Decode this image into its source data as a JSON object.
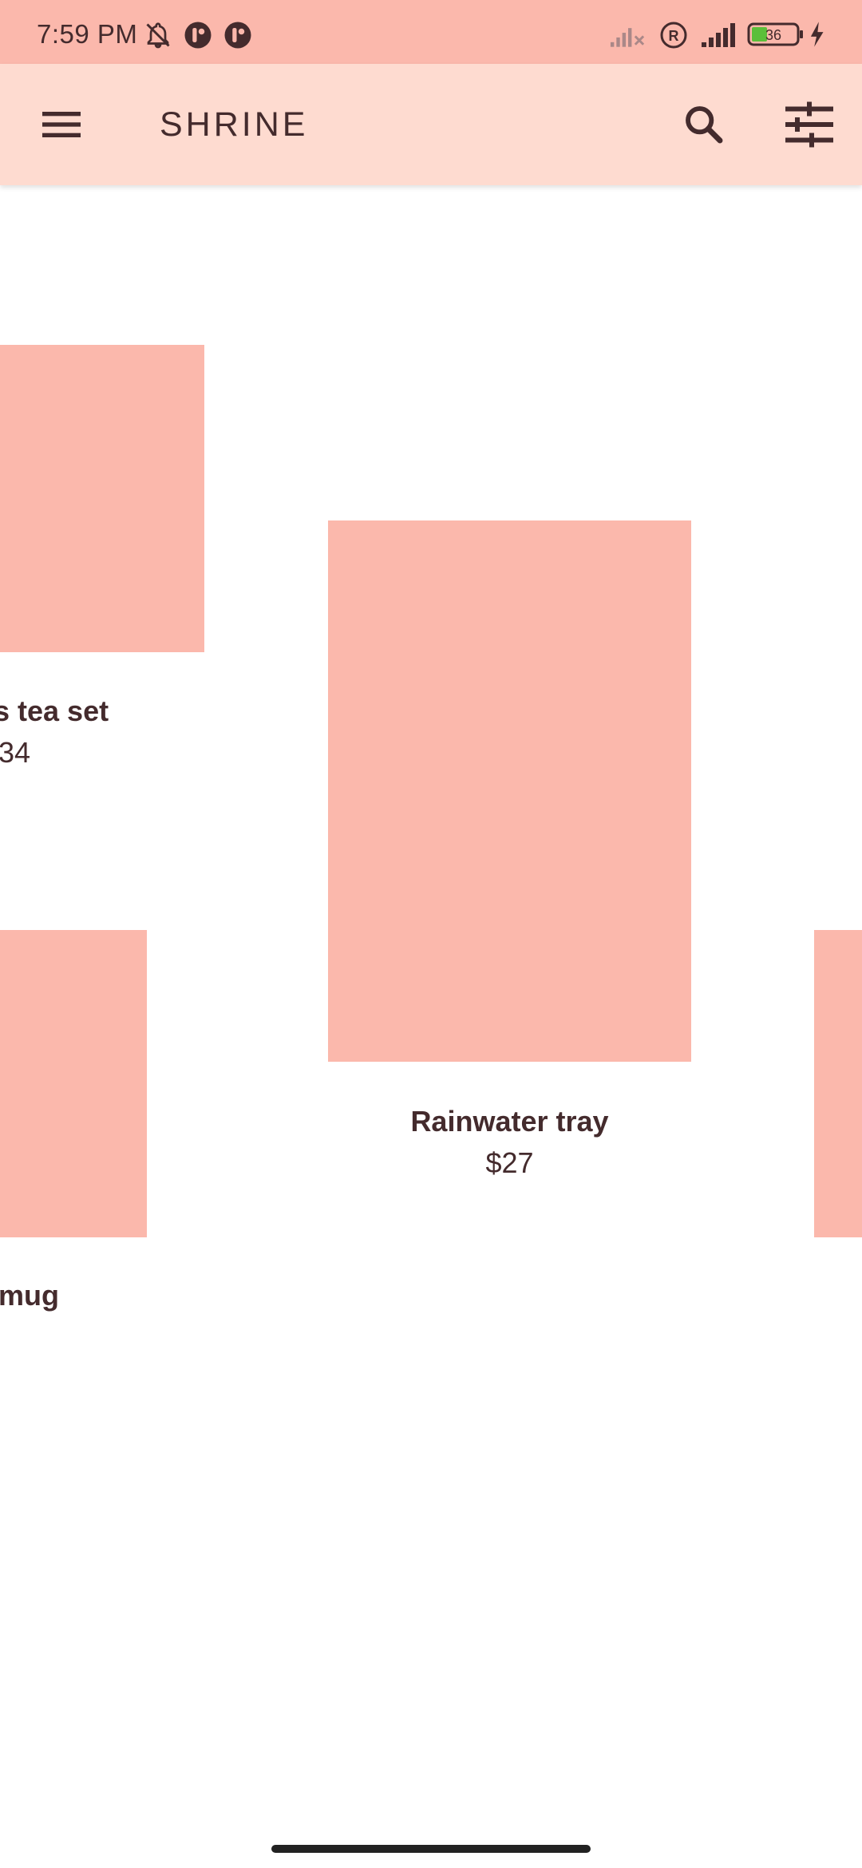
{
  "status_bar": {
    "time": "7:59 PM",
    "battery_level": "36",
    "icons": [
      "bell-off-icon",
      "app-notification-icon",
      "app-notification-icon",
      "signal-off-icon",
      "roaming-icon",
      "signal-icon",
      "battery-icon",
      "charging-icon"
    ]
  },
  "app_bar": {
    "title": "SHRINE",
    "menu_icon": "menu-icon",
    "search_icon": "search-icon",
    "filter_icon": "tune-icon"
  },
  "products": [
    {
      "name": "s tea set",
      "price": "34"
    },
    {
      "name": "Rainwater tray",
      "price": "$27"
    },
    {
      "name": "mug",
      "price": ""
    }
  ],
  "colors": {
    "status_bar": "#fbb8ac",
    "app_bar": "#fedbd0",
    "tile": "#fbb8ac",
    "text": "#442b2d"
  }
}
